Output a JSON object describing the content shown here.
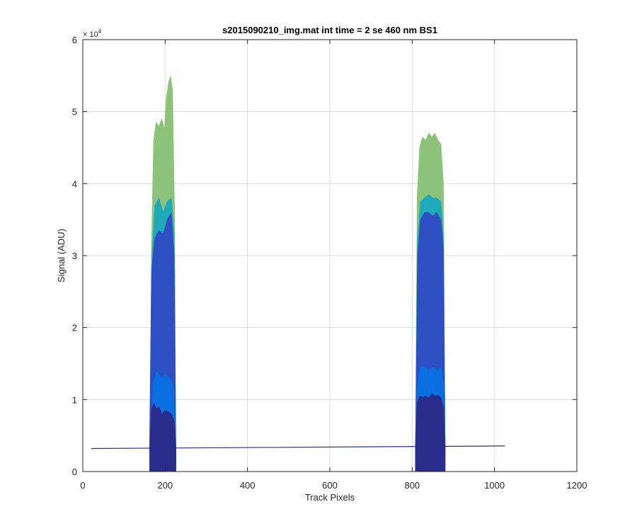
{
  "chart_data": {
    "type": "area",
    "title": "s2015090210_img.mat int time = 2 se  460 nm BS1",
    "xlabel": "Track Pixels",
    "ylabel": "Signal (ADU)",
    "xlim": [
      0,
      1200
    ],
    "ylim": [
      0,
      60000
    ],
    "xticks": [
      0,
      200,
      400,
      600,
      800,
      1000,
      1200
    ],
    "xtick_labels": [
      "0",
      "200",
      "400",
      "600",
      "800",
      "1000",
      "1200"
    ],
    "yticks": [
      0,
      10000,
      20000,
      30000,
      40000,
      50000,
      60000
    ],
    "ytick_labels": [
      "0",
      "1",
      "2",
      "3",
      "4",
      "5",
      "6"
    ],
    "y_exponent": {
      "base": "× 10",
      "power": "4"
    },
    "grid": true,
    "baseline": {
      "x": [
        20,
        1025
      ],
      "y": [
        3200,
        3550
      ]
    },
    "series": [
      {
        "color": "#8cc27a",
        "peaks": [
          {
            "x": [
              163,
              167,
              172,
              178,
              185,
              192,
              198,
              203,
              208,
              213,
              218,
              223,
              226
            ],
            "y": [
              3300,
              32000,
              46000,
              48500,
              48000,
              49000,
              47500,
              52000,
              54000,
              55000,
              53000,
              36000,
              3300
            ]
          },
          {
            "x": [
              808,
              812,
              818,
              825,
              833,
              840,
              848,
              855,
              863,
              870,
              876,
              880
            ],
            "y": [
              3500,
              38000,
              45000,
              46500,
              46000,
              47000,
              46500,
              47000,
              46000,
              45500,
              40000,
              3500
            ]
          }
        ]
      },
      {
        "color": "#1eaab8",
        "peaks": [
          {
            "x": [
              163,
              168,
              175,
              185,
              195,
              205,
              215,
              222,
              226
            ],
            "y": [
              3300,
              30000,
              37000,
              38000,
              36000,
              37500,
              38000,
              33000,
              3300
            ]
          },
          {
            "x": [
              808,
              813,
              820,
              830,
              840,
              850,
              860,
              870,
              876,
              880
            ],
            "y": [
              3500,
              32000,
              37500,
              38000,
              38500,
              38000,
              38000,
              37500,
              33000,
              3500
            ]
          }
        ]
      },
      {
        "color": "#2e4fc2",
        "peaks": [
          {
            "x": [
              162,
              167,
              175,
              185,
              195,
              205,
              215,
              222,
              226
            ],
            "y": [
              3300,
              28000,
              32500,
              33500,
              33000,
              35000,
              36000,
              30000,
              3300
            ]
          },
          {
            "x": [
              808,
              813,
              820,
              830,
              840,
              850,
              860,
              870,
              876,
              880
            ],
            "y": [
              3500,
              30000,
              35000,
              36000,
              36000,
              35500,
              36000,
              35000,
              31000,
              3500
            ]
          }
        ]
      },
      {
        "color": "#0a6fe0",
        "peaks": [
          {
            "x": [
              165,
              170,
              180,
              190,
              200,
              210,
              220,
              226
            ],
            "y": [
              3300,
              12000,
              14000,
              13000,
              13500,
              13000,
              12000,
              3300
            ]
          },
          {
            "x": [
              808,
              812,
              820,
              830,
              840,
              850,
              860,
              870,
              876,
              880
            ],
            "y": [
              3500,
              12000,
              14500,
              14500,
              14000,
              14500,
              14000,
              14500,
              12000,
              3500
            ]
          }
        ]
      },
      {
        "color": "#2b2d8c",
        "peaks": [
          {
            "x": [
              163,
              167,
              172,
              178,
              185,
              192,
              200,
              208,
              215,
              222,
              226
            ],
            "y": [
              3300,
              8500,
              9500,
              8800,
              9000,
              8000,
              8500,
              8300,
              8000,
              7000,
              3300
            ]
          },
          {
            "x": [
              808,
              812,
              818,
              825,
              833,
              840,
              848,
              855,
              863,
              870,
              876,
              880
            ],
            "y": [
              3500,
              9500,
              10500,
              10300,
              10500,
              10200,
              10800,
              10500,
              10600,
              10200,
              9000,
              3500
            ]
          }
        ]
      }
    ]
  }
}
